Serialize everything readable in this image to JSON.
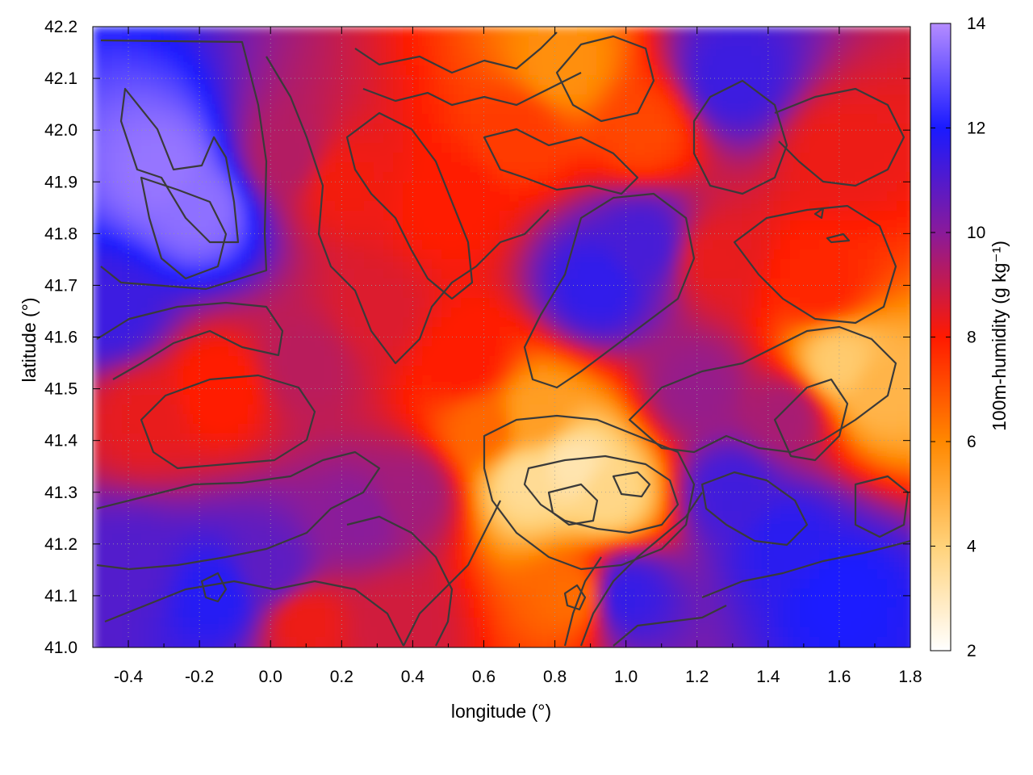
{
  "chart_data": {
    "type": "heatmap",
    "xlabel": "longitude (°)",
    "ylabel": "latitude (°)",
    "colorbar_label": "100m-humidity (g kg⁻¹)",
    "xlim": [
      -0.5,
      1.8
    ],
    "ylim": [
      41.0,
      42.2
    ],
    "clim": [
      2,
      14
    ],
    "x_ticks": [
      -0.4,
      -0.2,
      0.0,
      0.2,
      0.4,
      0.6,
      0.8,
      1.0,
      1.2,
      1.4,
      1.6,
      1.8
    ],
    "x_tick_labels": [
      "-0.4",
      "-0.2",
      "0.0",
      "0.2",
      "0.4",
      "0.6",
      "0.8",
      "1.0",
      "1.2",
      "1.4",
      "1.6",
      "1.8"
    ],
    "y_ticks": [
      41.0,
      41.1,
      41.2,
      41.3,
      41.4,
      41.5,
      41.6,
      41.7,
      41.8,
      41.9,
      42.0,
      42.1,
      42.2
    ],
    "y_tick_labels": [
      "41.0",
      "41.1",
      "41.2",
      "41.3",
      "41.4",
      "41.5",
      "41.6",
      "41.7",
      "41.8",
      "41.9",
      "42.0",
      "42.1",
      "42.2"
    ],
    "colorbar_ticks": [
      2,
      4,
      6,
      8,
      10,
      12,
      14
    ],
    "colorbar_tick_labels": [
      "2",
      "4",
      "6",
      "8",
      "10",
      "12",
      "14"
    ],
    "colormap": [
      {
        "value": 2,
        "color": "#ffffff"
      },
      {
        "value": 4,
        "color": "#ffd27a"
      },
      {
        "value": 6,
        "color": "#ff8800"
      },
      {
        "value": 8,
        "color": "#ff1a00"
      },
      {
        "value": 10,
        "color": "#8a1a9a"
      },
      {
        "value": 12,
        "color": "#1a1aff"
      },
      {
        "value": 14,
        "color": "#b58cff"
      }
    ],
    "field_features": [
      {
        "lon": -0.3,
        "lat": 41.92,
        "value": 13.6
      },
      {
        "lon": -0.2,
        "lat": 41.85,
        "value": 13.5
      },
      {
        "lon": 0.05,
        "lat": 41.95,
        "value": 9.3
      },
      {
        "lon": 0.2,
        "lat": 41.9,
        "value": 8.2
      },
      {
        "lon": 0.5,
        "lat": 41.85,
        "value": 8.0
      },
      {
        "lon": 0.7,
        "lat": 42.0,
        "value": 7.4
      },
      {
        "lon": 0.82,
        "lat": 42.12,
        "value": 5.8
      },
      {
        "lon": 1.05,
        "lat": 42.0,
        "value": 7.2
      },
      {
        "lon": 1.3,
        "lat": 42.1,
        "value": 11.4
      },
      {
        "lon": 1.6,
        "lat": 41.95,
        "value": 8.3
      },
      {
        "lon": 0.92,
        "lat": 41.7,
        "value": 11.6
      },
      {
        "lon": 1.05,
        "lat": 41.78,
        "value": 11.2
      },
      {
        "lon": 1.25,
        "lat": 41.75,
        "value": 8.4
      },
      {
        "lon": 1.55,
        "lat": 41.7,
        "value": 7.8
      },
      {
        "lon": 1.6,
        "lat": 41.55,
        "value": 4.2
      },
      {
        "lon": 1.72,
        "lat": 41.5,
        "value": 4.8
      },
      {
        "lon": 1.45,
        "lat": 41.45,
        "value": 9.5
      },
      {
        "lon": 1.2,
        "lat": 41.5,
        "value": 9.8
      },
      {
        "lon": 0.85,
        "lat": 41.35,
        "value": 3.2
      },
      {
        "lon": 0.72,
        "lat": 41.32,
        "value": 3.6
      },
      {
        "lon": 0.95,
        "lat": 41.3,
        "value": 3.8
      },
      {
        "lon": 0.75,
        "lat": 41.45,
        "value": 5.4
      },
      {
        "lon": 0.6,
        "lat": 41.42,
        "value": 6.6
      },
      {
        "lon": 0.55,
        "lat": 41.55,
        "value": 8.0
      },
      {
        "lon": 1.45,
        "lat": 41.2,
        "value": 11.7
      },
      {
        "lon": 1.6,
        "lat": 41.1,
        "value": 12.0
      },
      {
        "lon": 1.3,
        "lat": 41.3,
        "value": 11.3
      },
      {
        "lon": 1.0,
        "lat": 41.1,
        "value": 11.5
      },
      {
        "lon": 0.85,
        "lat": 41.1,
        "value": 6.5
      },
      {
        "lon": 0.4,
        "lat": 41.3,
        "value": 9.6
      },
      {
        "lon": 0.25,
        "lat": 41.25,
        "value": 10.0
      },
      {
        "lon": 0.0,
        "lat": 41.15,
        "value": 10.8
      },
      {
        "lon": -0.15,
        "lat": 41.1,
        "value": 11.8
      },
      {
        "lon": -0.4,
        "lat": 41.15,
        "value": 11.0
      },
      {
        "lon": -0.35,
        "lat": 41.45,
        "value": 8.4
      },
      {
        "lon": -0.15,
        "lat": 41.5,
        "value": 7.9
      },
      {
        "lon": 0.1,
        "lat": 41.55,
        "value": 9.2
      },
      {
        "lon": 0.3,
        "lat": 41.65,
        "value": 8.6
      },
      {
        "lon": -0.45,
        "lat": 41.65,
        "value": 11.4
      },
      {
        "lon": 0.1,
        "lat": 41.05,
        "value": 8.3
      },
      {
        "lon": 0.35,
        "lat": 41.05,
        "value": 8.8
      }
    ]
  }
}
